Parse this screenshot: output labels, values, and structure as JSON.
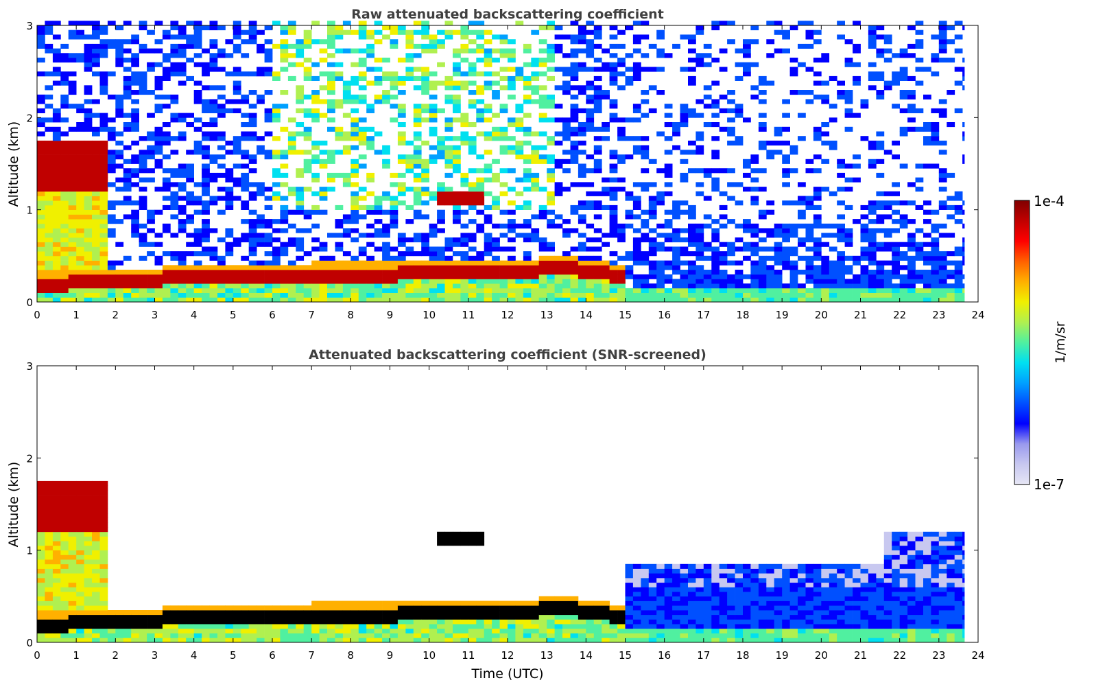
{
  "chart_data": [
    {
      "type": "heatmap",
      "title": "Raw attenuated backscattering coefficient",
      "xlabel": "",
      "ylabel": "Altitude (km)",
      "xlim": [
        0,
        24
      ],
      "ylim": [
        0,
        3
      ],
      "xticks": [
        "0",
        "1",
        "2",
        "3",
        "4",
        "5",
        "6",
        "7",
        "8",
        "9",
        "10",
        "11",
        "12",
        "13",
        "14",
        "15",
        "16",
        "17",
        "18",
        "19",
        "20",
        "21",
        "22",
        "23",
        "24"
      ],
      "yticks": [
        "0",
        "1",
        "2",
        "3"
      ],
      "data_end_time": 23.65,
      "features": [
        {
          "layer": "boundary-layer top",
          "x": [
            0.7,
            3,
            5,
            7,
            9,
            11,
            12.5,
            13,
            14,
            14.8
          ],
          "altitude": [
            0.2,
            0.25,
            0.28,
            0.3,
            0.3,
            0.31,
            0.33,
            0.4,
            0.32,
            0.28
          ],
          "level": "1e-4"
        },
        {
          "layer": "early cloud",
          "x": [
            0,
            0.5,
            1,
            1.5
          ],
          "altitude": [
            1.3,
            1.65,
            1.4,
            1.3
          ],
          "level": "1e-4"
        },
        {
          "layer": "elevated cloud",
          "x": [
            10,
            10.4,
            11,
            11.3
          ],
          "altitude": [
            1.12,
            1.1,
            1.12,
            1.14
          ],
          "level": "1e-4"
        }
      ]
    },
    {
      "type": "heatmap",
      "title": "Attenuated backscattering coefficient (SNR-screened)",
      "xlabel": "Time (UTC)",
      "ylabel": "Altitude (km)",
      "xlim": [
        0,
        24
      ],
      "ylim": [
        0,
        3
      ],
      "xticks": [
        "0",
        "1",
        "2",
        "3",
        "4",
        "5",
        "6",
        "7",
        "8",
        "9",
        "10",
        "11",
        "12",
        "13",
        "14",
        "15",
        "16",
        "17",
        "18",
        "19",
        "20",
        "21",
        "22",
        "23",
        "24"
      ],
      "yticks": [
        "0",
        "1",
        "2",
        "3"
      ],
      "data_end_time": 23.65
    }
  ],
  "colorbar": {
    "label": "1/m/sr",
    "max_label": "1e-4",
    "min_label": "1e-7",
    "scale": "log",
    "colors": [
      "#e6e6f5",
      "#c8c8f0",
      "#9999ee",
      "#0000ff",
      "#0050ff",
      "#00a0ff",
      "#00e0f0",
      "#50f0a0",
      "#b0f050",
      "#f0f000",
      "#ffb000",
      "#ff6000",
      "#ff0000",
      "#c00000",
      "#800000"
    ]
  },
  "colors": {
    "low_signal": "#0a28ff",
    "high_signal": "#800000",
    "saturated": "#000000",
    "title_text": "#404040"
  }
}
